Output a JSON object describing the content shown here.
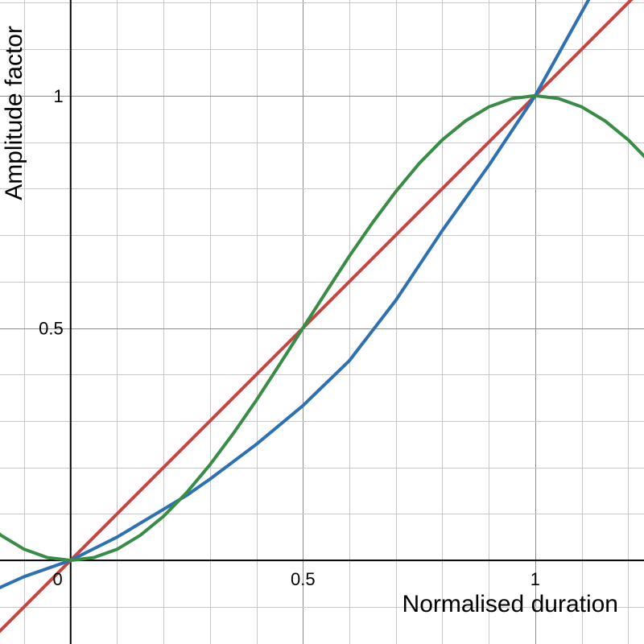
{
  "chart_data": {
    "type": "line",
    "xlabel": "Normalised duration",
    "ylabel": "Amplitude factor",
    "xlim": [
      -0.152,
      1.234
    ],
    "ylim": [
      -0.18,
      1.206
    ],
    "x_ticks": [
      {
        "value": 0,
        "label": "0"
      },
      {
        "value": 0.5,
        "label": "0.5"
      },
      {
        "value": 1,
        "label": "1"
      }
    ],
    "y_ticks": [
      {
        "value": 0.5,
        "label": "0.5"
      },
      {
        "value": 1,
        "label": "1"
      }
    ],
    "minor_grid_step": 0.1,
    "major_grid_step": 0.5,
    "grid": true,
    "series": [
      {
        "color": "#c74440",
        "x": [
          -0.2,
          0,
          0.5,
          1,
          1.3
        ],
        "y": [
          -0.2,
          0,
          0.5,
          1,
          1.3
        ]
      },
      {
        "color": "#2d70b3",
        "x": [
          -0.2,
          -0.1,
          0,
          0.1,
          0.2,
          0.25,
          0.3,
          0.4,
          0.5,
          0.6,
          0.7,
          0.8,
          0.9,
          1,
          1.05,
          1.1,
          1.15
        ],
        "y": [
          -0.08,
          -0.035,
          0,
          0.05,
          0.11,
          0.14,
          0.175,
          0.25,
          0.333,
          0.43,
          0.56,
          0.71,
          0.85,
          1,
          1.09,
          1.18,
          1.27
        ]
      },
      {
        "color": "#388c46",
        "x": [
          -0.2,
          -0.15,
          -0.1,
          -0.05,
          0,
          0.05,
          0.1,
          0.15,
          0.2,
          0.25,
          0.3,
          0.35,
          0.4,
          0.45,
          0.5,
          0.55,
          0.6,
          0.65,
          0.7,
          0.75,
          0.8,
          0.85,
          0.9,
          0.95,
          1,
          1.05,
          1.1,
          1.15,
          1.2,
          1.25
        ],
        "y": [
          0.095,
          0.054,
          0.024,
          0.006,
          0,
          0.006,
          0.024,
          0.054,
          0.095,
          0.146,
          0.206,
          0.273,
          0.345,
          0.422,
          0.5,
          0.578,
          0.655,
          0.727,
          0.794,
          0.854,
          0.905,
          0.946,
          0.976,
          0.994,
          1,
          0.994,
          0.976,
          0.946,
          0.905,
          0.854
        ]
      }
    ]
  }
}
